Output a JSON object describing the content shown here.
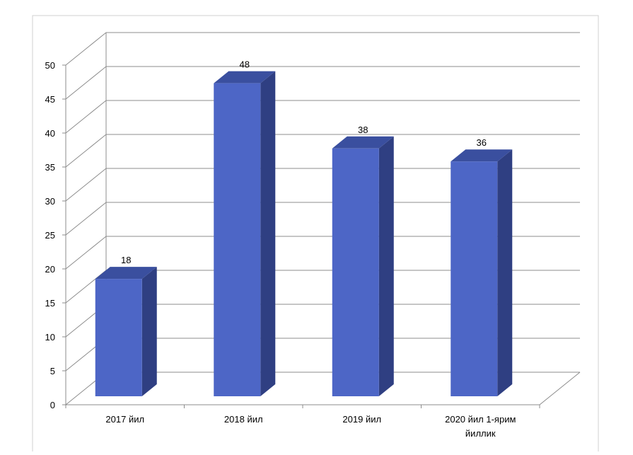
{
  "chart_data": {
    "type": "bar",
    "categories": [
      "2017 йил",
      "2018 йил",
      "2019 йил",
      "2020 йил 1-ярим йиллик"
    ],
    "category_lines": [
      [
        "2017 йил"
      ],
      [
        "2018 йил"
      ],
      [
        "2019 йил"
      ],
      [
        "2020 йил 1-ярим",
        "йиллик"
      ]
    ],
    "values": [
      18,
      48,
      38,
      36
    ],
    "data_labels": [
      "18",
      "48",
      "38",
      "36"
    ],
    "title": "",
    "xlabel": "",
    "ylabel": "",
    "ylim": [
      0,
      50
    ],
    "yticks": [
      0,
      5,
      10,
      15,
      20,
      25,
      30,
      35,
      40,
      45,
      50
    ],
    "grid": true,
    "three_d": true,
    "legend": "none"
  },
  "colors": {
    "bar_front": "#4d66c6",
    "bar_side": "#2f3f82",
    "bar_top": "#3a4f9f",
    "grid": "#8c8c8c",
    "frame": "#d0d0d0"
  }
}
